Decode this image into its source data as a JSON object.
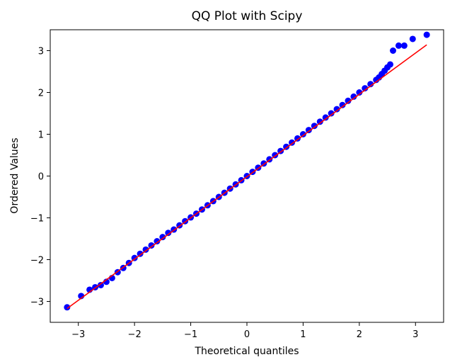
{
  "chart_data": {
    "type": "scatter",
    "title": "QQ Plot with Scipy",
    "xlabel": "Theoretical quantiles",
    "ylabel": "Ordered Values",
    "xlim": [
      -3.5,
      3.5
    ],
    "ylim": [
      -3.5,
      3.5
    ],
    "x_ticks": [
      -3,
      -2,
      -1,
      0,
      1,
      2,
      3
    ],
    "y_ticks": [
      -3,
      -2,
      -1,
      0,
      1,
      2,
      3
    ],
    "x_tick_labels": [
      "−3",
      "−2",
      "−1",
      "0",
      "1",
      "2",
      "3"
    ],
    "y_tick_labels": [
      "−3",
      "−2",
      "−1",
      "0",
      "1",
      "2",
      "3"
    ],
    "grid": false,
    "fit_line": {
      "x": [
        -3.2,
        3.2
      ],
      "y": [
        -3.17,
        3.14
      ],
      "color": "#ff0000"
    },
    "marker_color": "#0000ff",
    "series": [
      {
        "x": [
          -3.2,
          -2.95,
          -2.8,
          -2.7,
          -2.6,
          -2.5,
          -2.4,
          -2.3,
          -2.2,
          -2.1,
          -2.0,
          -1.9,
          -1.8,
          -1.7,
          -1.6,
          -1.5,
          -1.4,
          -1.3,
          -1.2,
          -1.1,
          -1.0,
          -0.9,
          -0.8,
          -0.7,
          -0.6,
          -0.5,
          -0.4,
          -0.3,
          -0.2,
          -0.1,
          0.0,
          0.1,
          0.2,
          0.3,
          0.4,
          0.5,
          0.6,
          0.7,
          0.8,
          0.9,
          1.0,
          1.1,
          1.2,
          1.3,
          1.4,
          1.5,
          1.6,
          1.7,
          1.8,
          1.9,
          2.0,
          2.1,
          2.2,
          2.3,
          2.35,
          2.4,
          2.45,
          2.5,
          2.55,
          2.6,
          2.7,
          2.8,
          2.95,
          3.2
        ],
        "y": [
          -3.14,
          -2.87,
          -2.72,
          -2.66,
          -2.61,
          -2.53,
          -2.44,
          -2.3,
          -2.2,
          -2.08,
          -1.96,
          -1.86,
          -1.76,
          -1.66,
          -1.56,
          -1.46,
          -1.36,
          -1.28,
          -1.18,
          -1.08,
          -0.99,
          -0.9,
          -0.8,
          -0.7,
          -0.6,
          -0.5,
          -0.4,
          -0.3,
          -0.2,
          -0.1,
          0.0,
          0.1,
          0.2,
          0.3,
          0.4,
          0.5,
          0.6,
          0.7,
          0.8,
          0.9,
          1.0,
          1.1,
          1.2,
          1.3,
          1.4,
          1.5,
          1.6,
          1.7,
          1.8,
          1.9,
          2.0,
          2.1,
          2.2,
          2.3,
          2.36,
          2.44,
          2.52,
          2.6,
          2.67,
          3.0,
          3.12,
          3.12,
          3.28,
          3.38
        ]
      }
    ]
  }
}
